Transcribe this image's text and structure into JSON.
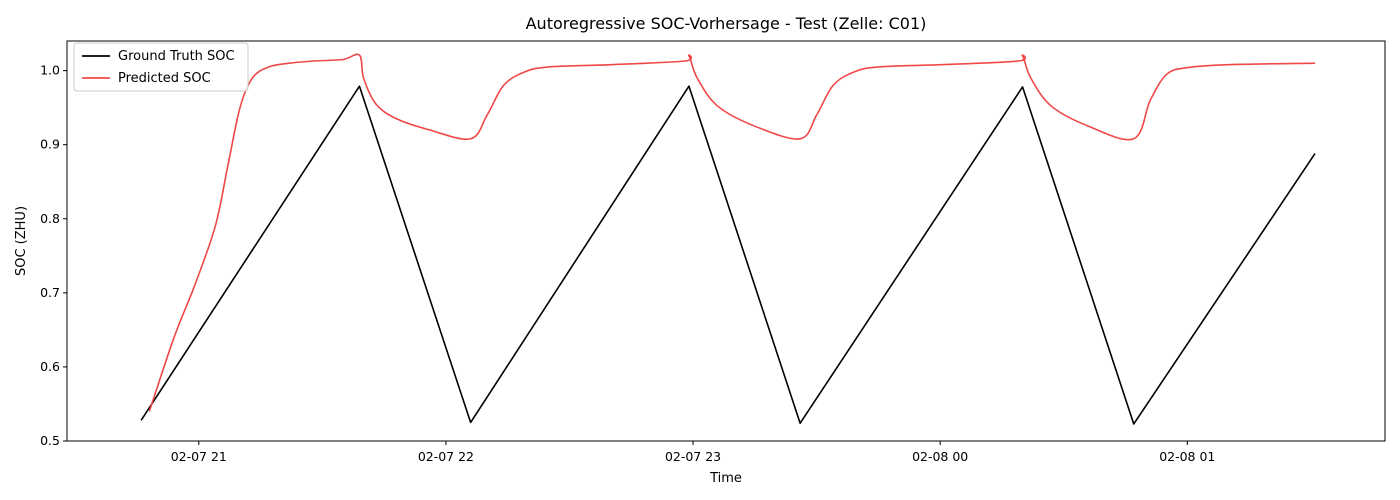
{
  "chart_data": {
    "type": "line",
    "title": "Autoregressive SOC-Vorhersage - Test (Zelle: C01)",
    "xlabel": "Time",
    "ylabel": "SOC (ZHU)",
    "xlim": [
      "2026-02-07 20:28",
      "2026-02-08 01:48"
    ],
    "ylim": [
      0.5,
      1.04
    ],
    "x_ticks": [
      "02-07 21",
      "02-07 22",
      "02-07 23",
      "02-08 00",
      "02-08 01"
    ],
    "y_ticks": [
      "0.5",
      "0.6",
      "0.7",
      "0.8",
      "0.9",
      "1.0"
    ],
    "grid": false,
    "legend_position": "top-left",
    "series": [
      {
        "name": "Ground Truth SOC",
        "color": "#000000",
        "x": [
          "2026-02-07 20:46",
          "2026-02-07 21:39",
          "2026-02-07 22:06",
          "2026-02-07 22:59",
          "2026-02-07 23:26",
          "2026-02-08 00:20",
          "2026-02-08 00:47",
          "2026-02-08 01:31"
        ],
        "y": [
          0.528,
          0.979,
          0.525,
          0.979,
          0.524,
          0.978,
          0.523,
          0.888
        ]
      },
      {
        "name": "Predicted SOC",
        "color": "#f04848",
        "x": [
          "2026-02-07 20:48",
          "2026-02-07 20:54",
          "2026-02-07 20:59",
          "2026-02-07 21:04",
          "2026-02-07 21:07",
          "2026-02-07 21:10",
          "2026-02-07 21:13",
          "2026-02-07 21:17",
          "2026-02-07 21:22",
          "2026-02-07 21:28",
          "2026-02-07 21:35",
          "2026-02-07 21:39",
          "2026-02-07 21:40",
          "2026-02-07 21:43",
          "2026-02-07 21:48",
          "2026-02-07 21:56",
          "2026-02-07 22:06",
          "2026-02-07 22:10",
          "2026-02-07 22:14",
          "2026-02-07 22:19",
          "2026-02-07 22:25",
          "2026-02-07 22:40",
          "2026-02-07 22:58",
          "2026-02-07 22:59",
          "2026-02-07 23:01",
          "2026-02-07 23:06",
          "2026-02-07 23:15",
          "2026-02-07 23:26",
          "2026-02-07 23:30",
          "2026-02-07 23:34",
          "2026-02-07 23:39",
          "2026-02-07 23:45",
          "2026-02-08 00:00",
          "2026-02-08 00:19",
          "2026-02-08 00:20",
          "2026-02-08 00:22",
          "2026-02-08 00:27",
          "2026-02-08 00:36",
          "2026-02-08 00:47",
          "2026-02-08 00:51",
          "2026-02-08 00:55",
          "2026-02-08 01:00",
          "2026-02-08 01:10",
          "2026-02-08 01:31"
        ],
        "y": [
          0.54,
          0.64,
          0.71,
          0.79,
          0.87,
          0.95,
          0.99,
          1.005,
          1.01,
          1.013,
          1.015,
          1.021,
          0.99,
          0.955,
          0.935,
          0.92,
          0.908,
          0.94,
          0.98,
          0.998,
          1.005,
          1.008,
          1.013,
          1.02,
          0.99,
          0.952,
          0.925,
          0.908,
          0.94,
          0.98,
          0.998,
          1.005,
          1.008,
          1.013,
          1.02,
          0.99,
          0.952,
          0.925,
          0.908,
          0.96,
          0.995,
          1.004,
          1.008,
          1.01
        ]
      }
    ]
  }
}
